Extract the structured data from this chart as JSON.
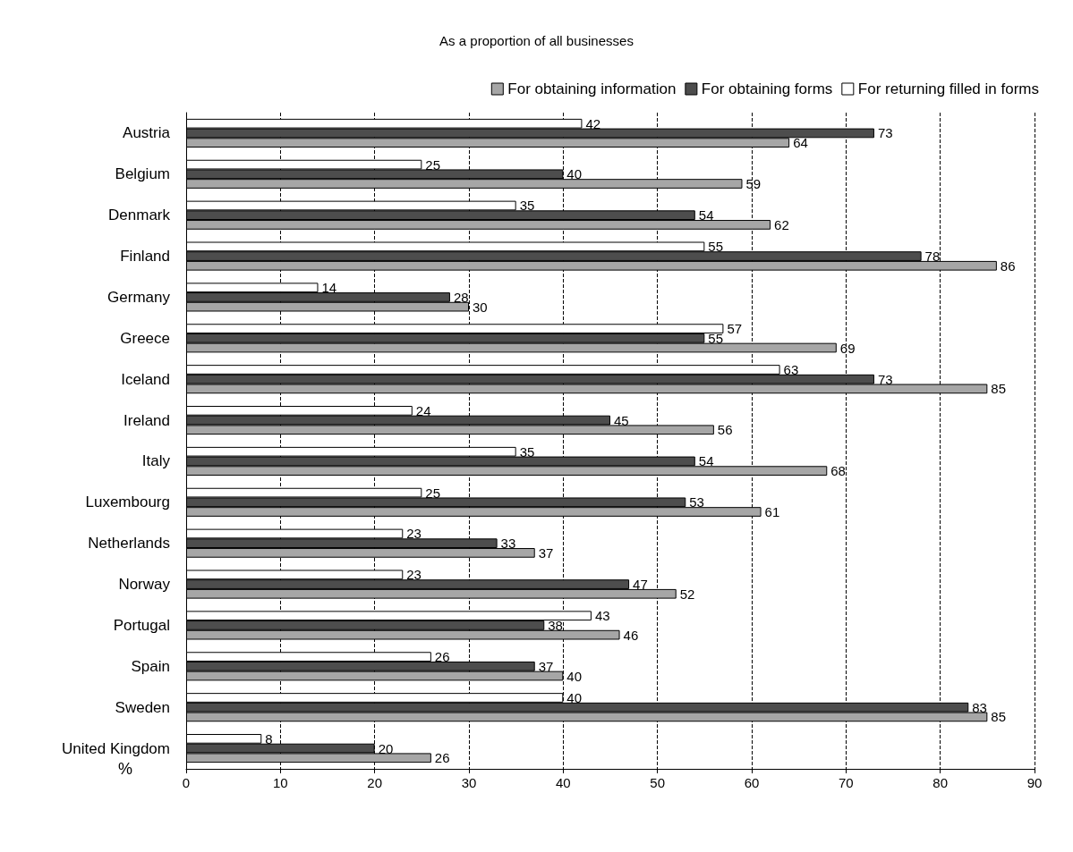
{
  "chart_data": {
    "type": "bar",
    "orientation": "horizontal",
    "title": "As a proportion of all businesses",
    "xlabel": "%",
    "categories": [
      "Austria",
      "Belgium",
      "Denmark",
      "Finland",
      "Germany",
      "Greece",
      "Iceland",
      "Ireland",
      "Italy",
      "Luxembourg",
      "Netherlands",
      "Norway",
      "Portugal",
      "Spain",
      "Sweden",
      "United Kingdom"
    ],
    "series": [
      {
        "name": "For obtaining information",
        "color": "#a6a6a6",
        "values": [
          64,
          59,
          62,
          86,
          30,
          69,
          85,
          56,
          68,
          61,
          37,
          52,
          46,
          40,
          85,
          26
        ]
      },
      {
        "name": "For obtaining forms",
        "color": "#4d4d4d",
        "values": [
          73,
          40,
          54,
          78,
          28,
          55,
          73,
          45,
          54,
          53,
          33,
          47,
          38,
          37,
          83,
          20
        ]
      },
      {
        "name": "For returning filled in forms",
        "color": "#ffffff",
        "values": [
          42,
          25,
          35,
          55,
          14,
          57,
          63,
          24,
          35,
          25,
          23,
          23,
          43,
          26,
          40,
          8
        ]
      }
    ],
    "xlim": [
      0,
      90
    ],
    "xticks": [
      0,
      10,
      20,
      30,
      40,
      50,
      60,
      70,
      80,
      90
    ],
    "grid": "x",
    "line_style": "dashed",
    "legend": "top right",
    "data_labels": true
  }
}
